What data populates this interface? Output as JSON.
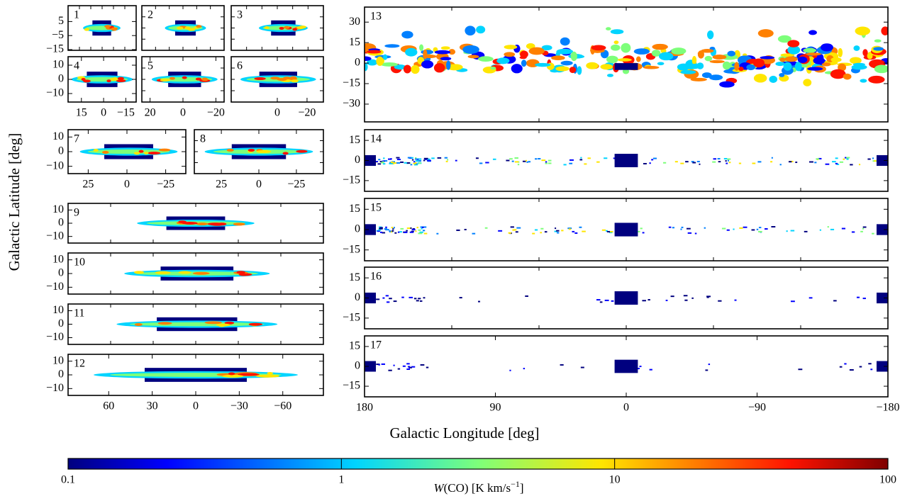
{
  "chart_data": [
    {
      "type": "heatmap",
      "label": "1",
      "xlim": [
        23,
        -23
      ],
      "ylim": [
        -15.5,
        16.3
      ],
      "yticks": [
        5,
        {
          "value": -5,
          "label": "−5"
        },
        {
          "value": -15,
          "label": "−15"
        }
      ]
    },
    {
      "type": "heatmap",
      "label": "2",
      "xlim": [
        25,
        -25
      ],
      "ylim": [
        -15.5,
        16.3
      ]
    },
    {
      "type": "heatmap",
      "label": "3",
      "xlim": [
        31,
        -31
      ],
      "ylim": [
        -15.5,
        16.3
      ]
    },
    {
      "type": "heatmap",
      "label": "4",
      "xlim": [
        24,
        -22
      ],
      "ylim": [
        -16,
        16
      ],
      "xticks": [
        15,
        0,
        {
          "value": -15,
          "label": "−15"
        }
      ],
      "yticks": [
        10,
        0,
        {
          "value": -10,
          "label": "−10"
        }
      ]
    },
    {
      "type": "heatmap",
      "label": "5",
      "xlim": [
        25,
        -25
      ],
      "ylim": [
        -16,
        16
      ],
      "xticks": [
        20,
        0,
        {
          "value": -20,
          "label": "−20"
        }
      ]
    },
    {
      "type": "heatmap",
      "label": "6",
      "xlim": [
        31,
        -31
      ],
      "ylim": [
        -16,
        16
      ],
      "xticks": [
        0,
        {
          "value": -20,
          "label": "−20"
        }
      ]
    },
    {
      "type": "heatmap",
      "label": "7",
      "xlim": [
        38,
        -38
      ],
      "ylim": [
        -15,
        15
      ],
      "xticks": [
        25,
        0,
        {
          "value": -25,
          "label": "−25"
        }
      ],
      "yticks": [
        10,
        0,
        {
          "value": -10,
          "label": "−10"
        }
      ]
    },
    {
      "type": "heatmap",
      "label": "8",
      "xlim": [
        43,
        -43
      ],
      "ylim": [
        -15,
        15
      ],
      "xticks": [
        25,
        0,
        {
          "value": -25,
          "label": "−25"
        }
      ]
    },
    {
      "type": "heatmap",
      "label": "9",
      "xlim": [
        88,
        -88
      ],
      "ylim": [
        -15,
        15
      ],
      "yticks": [
        10,
        0,
        {
          "value": -10,
          "label": "−10"
        }
      ]
    },
    {
      "type": "heatmap",
      "label": "10",
      "xlim": [
        88,
        -88
      ],
      "ylim": [
        -15,
        15
      ],
      "yticks": [
        10,
        0,
        {
          "value": -10,
          "label": "−10"
        }
      ]
    },
    {
      "type": "heatmap",
      "label": "11",
      "xlim": [
        88,
        -88
      ],
      "ylim": [
        -15,
        15
      ],
      "yticks": [
        10,
        0,
        {
          "value": -10,
          "label": "−10"
        }
      ]
    },
    {
      "type": "heatmap",
      "label": "12",
      "xlim": [
        88,
        -88
      ],
      "ylim": [
        -15,
        15
      ],
      "xticks": [
        60,
        30,
        0,
        {
          "value": -30,
          "label": "−30"
        },
        {
          "value": -60,
          "label": "−60"
        }
      ],
      "yticks": [
        10,
        0,
        {
          "value": -10,
          "label": "−10"
        }
      ]
    },
    {
      "type": "heatmap",
      "label": "13",
      "xlim": [
        180,
        -180
      ],
      "ylim": [
        -43,
        41
      ],
      "yticks": [
        30,
        15,
        0,
        {
          "value": -15,
          "label": "−15"
        },
        {
          "value": -30,
          "label": "−30"
        }
      ]
    },
    {
      "type": "heatmap",
      "label": "14",
      "xlim": [
        180,
        -180
      ],
      "ylim": [
        -23,
        23
      ],
      "yticks": [
        15,
        0,
        {
          "value": -15,
          "label": "−15"
        }
      ]
    },
    {
      "type": "heatmap",
      "label": "15",
      "xlim": [
        180,
        -180
      ],
      "ylim": [
        -23,
        23
      ],
      "yticks": [
        15,
        0,
        {
          "value": -15,
          "label": "−15"
        }
      ]
    },
    {
      "type": "heatmap",
      "label": "16",
      "xlim": [
        180,
        -180
      ],
      "ylim": [
        -23,
        23
      ],
      "yticks": [
        15,
        0,
        {
          "value": -15,
          "label": "−15"
        }
      ]
    },
    {
      "type": "heatmap",
      "label": "17",
      "xlim": [
        180,
        -180
      ],
      "ylim": [
        -23,
        23
      ],
      "xticks": [
        180,
        90,
        0,
        {
          "value": -90,
          "label": "−90"
        },
        {
          "value": -180,
          "label": "−180"
        }
      ],
      "yticks": [
        15,
        0,
        {
          "value": -15,
          "label": "−15"
        }
      ]
    }
  ],
  "xlabel": "Galactic Longitude [deg]",
  "ylabel": "Galactic Latitude [deg]",
  "colorbar": {
    "lim": [
      0.1,
      100
    ],
    "log": true,
    "ticks": [
      0.1,
      1,
      10,
      100
    ],
    "label": [
      "W",
      "(CO) [K km/s",
      "−1",
      "]"
    ]
  }
}
